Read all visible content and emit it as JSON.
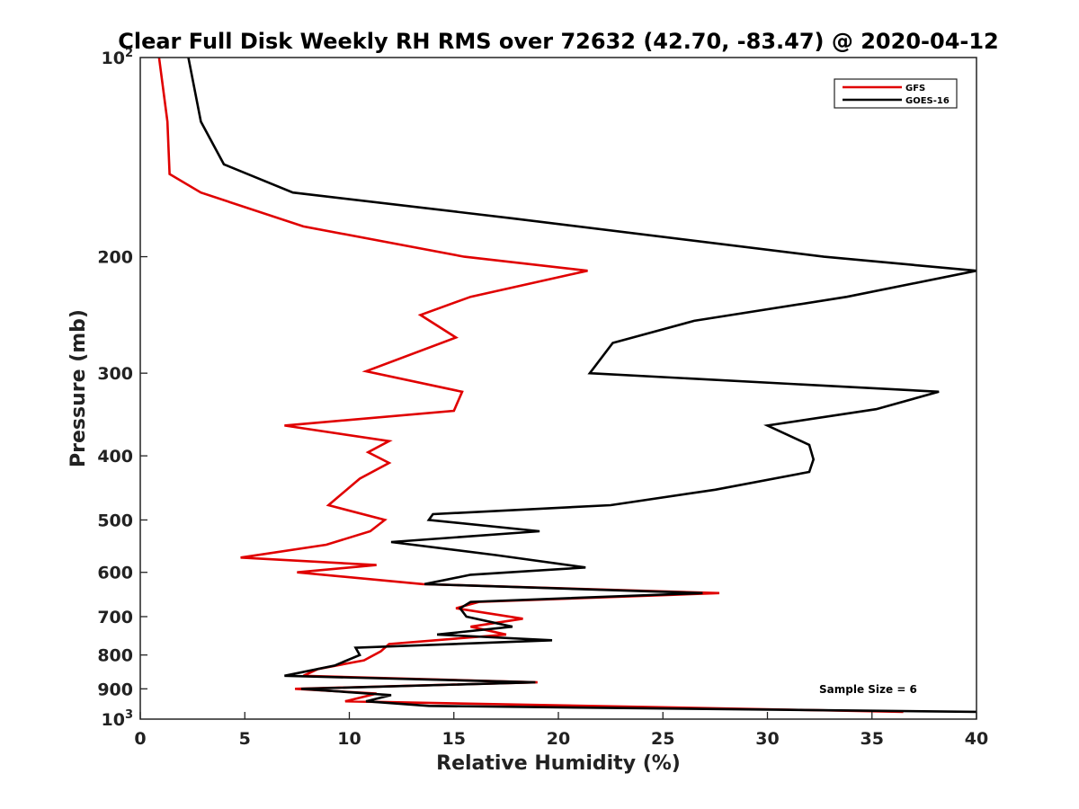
{
  "chart_data": {
    "type": "line",
    "title": "Clear Full Disk Weekly RH RMS over 72632 (42.70, -83.47) @ 2020-04-12",
    "xlabel": "Relative Humidity (%)",
    "ylabel": "Pressure (mb)",
    "xlim": [
      0,
      40
    ],
    "ylim": [
      100,
      1000
    ],
    "y_scale": "log",
    "y_reversed": true,
    "x_ticks": [
      0,
      5,
      10,
      15,
      20,
      25,
      30,
      35,
      40
    ],
    "y_ticks": [
      {
        "value": 100,
        "label": "10",
        "sup": "2"
      },
      {
        "value": 200,
        "label": "200"
      },
      {
        "value": 300,
        "label": "300"
      },
      {
        "value": 400,
        "label": "400"
      },
      {
        "value": 500,
        "label": "500"
      },
      {
        "value": 600,
        "label": "600"
      },
      {
        "value": 700,
        "label": "700"
      },
      {
        "value": 800,
        "label": "800"
      },
      {
        "value": 900,
        "label": "900"
      },
      {
        "value": 1000,
        "label": "10",
        "sup": "3"
      }
    ],
    "grid": false,
    "legend_position": "top-right",
    "annotation": "Sample Size = 6",
    "series": [
      {
        "name": "GFS",
        "color": "#e00000",
        "points": [
          [
            0.9,
            100
          ],
          [
            1.3,
            125
          ],
          [
            1.4,
            150
          ],
          [
            2.9,
            160
          ],
          [
            7.8,
            180
          ],
          [
            15.5,
            200
          ],
          [
            21.4,
            210
          ],
          [
            15.8,
            230
          ],
          [
            13.4,
            245
          ],
          [
            15.1,
            265
          ],
          [
            10.8,
            298
          ],
          [
            15.4,
            320
          ],
          [
            15.0,
            342
          ],
          [
            6.9,
            360
          ],
          [
            11.9,
            380
          ],
          [
            10.9,
            395
          ],
          [
            11.9,
            410
          ],
          [
            10.5,
            433
          ],
          [
            9.0,
            475
          ],
          [
            11.7,
            500
          ],
          [
            11.0,
            520
          ],
          [
            8.9,
            545
          ],
          [
            4.8,
            570
          ],
          [
            11.3,
            585
          ],
          [
            7.5,
            600
          ],
          [
            13.5,
            625
          ],
          [
            27.7,
            645
          ],
          [
            16.2,
            665
          ],
          [
            15.1,
            680
          ],
          [
            18.3,
            705
          ],
          [
            15.8,
            725
          ],
          [
            17.5,
            745
          ],
          [
            11.9,
            770
          ],
          [
            11.5,
            790
          ],
          [
            10.7,
            815
          ],
          [
            8.5,
            840
          ],
          [
            7.8,
            860
          ],
          [
            19.0,
            880
          ],
          [
            7.4,
            900
          ],
          [
            11.3,
            915
          ],
          [
            9.8,
            940
          ],
          [
            36.5,
            975
          ]
        ]
      },
      {
        "name": "GOES-16",
        "color": "#000000",
        "points": [
          [
            2.3,
            100
          ],
          [
            2.9,
            125
          ],
          [
            4.0,
            145
          ],
          [
            7.3,
            160
          ],
          [
            17.8,
            175
          ],
          [
            32.7,
            200
          ],
          [
            40.0,
            210
          ],
          [
            33.8,
            230
          ],
          [
            26.5,
            250
          ],
          [
            22.6,
            270
          ],
          [
            21.5,
            300
          ],
          [
            38.2,
            320
          ],
          [
            35.2,
            340
          ],
          [
            30.0,
            360
          ],
          [
            32.0,
            385
          ],
          [
            32.2,
            405
          ],
          [
            32.0,
            423
          ],
          [
            27.5,
            450
          ],
          [
            22.5,
            475
          ],
          [
            14.0,
            490
          ],
          [
            13.8,
            500
          ],
          [
            19.1,
            520
          ],
          [
            12.0,
            540
          ],
          [
            17.0,
            565
          ],
          [
            21.3,
            590
          ],
          [
            15.8,
            605
          ],
          [
            13.6,
            625
          ],
          [
            26.9,
            645
          ],
          [
            15.8,
            665
          ],
          [
            15.3,
            680
          ],
          [
            15.6,
            700
          ],
          [
            17.8,
            725
          ],
          [
            14.2,
            745
          ],
          [
            19.7,
            760
          ],
          [
            10.3,
            780
          ],
          [
            10.5,
            800
          ],
          [
            9.3,
            830
          ],
          [
            6.9,
            860
          ],
          [
            18.9,
            880
          ],
          [
            7.7,
            900
          ],
          [
            12.0,
            920
          ],
          [
            10.8,
            940
          ],
          [
            13.8,
            955
          ],
          [
            40.0,
            975
          ]
        ]
      }
    ]
  }
}
